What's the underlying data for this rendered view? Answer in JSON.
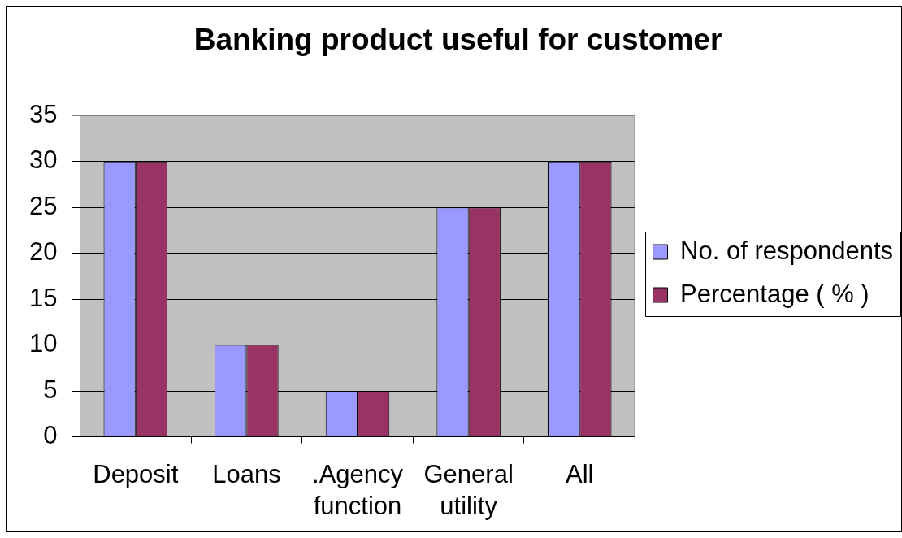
{
  "chart_data": {
    "type": "bar",
    "title": "Banking product useful for customer",
    "categories": [
      "Deposit",
      "Loans",
      ".Agency function",
      "General utility",
      "All"
    ],
    "series": [
      {
        "name": "No. of respondents",
        "color": "#9999ff",
        "values": [
          30,
          10,
          5,
          25,
          30
        ]
      },
      {
        "name": "Percentage ( % )",
        "color": "#993366",
        "values": [
          30,
          10,
          5,
          25,
          30
        ]
      }
    ],
    "ylim": [
      0,
      35
    ],
    "yticks": [
      0,
      5,
      10,
      15,
      20,
      25,
      30,
      35
    ],
    "grid": "y",
    "legend": "right"
  }
}
